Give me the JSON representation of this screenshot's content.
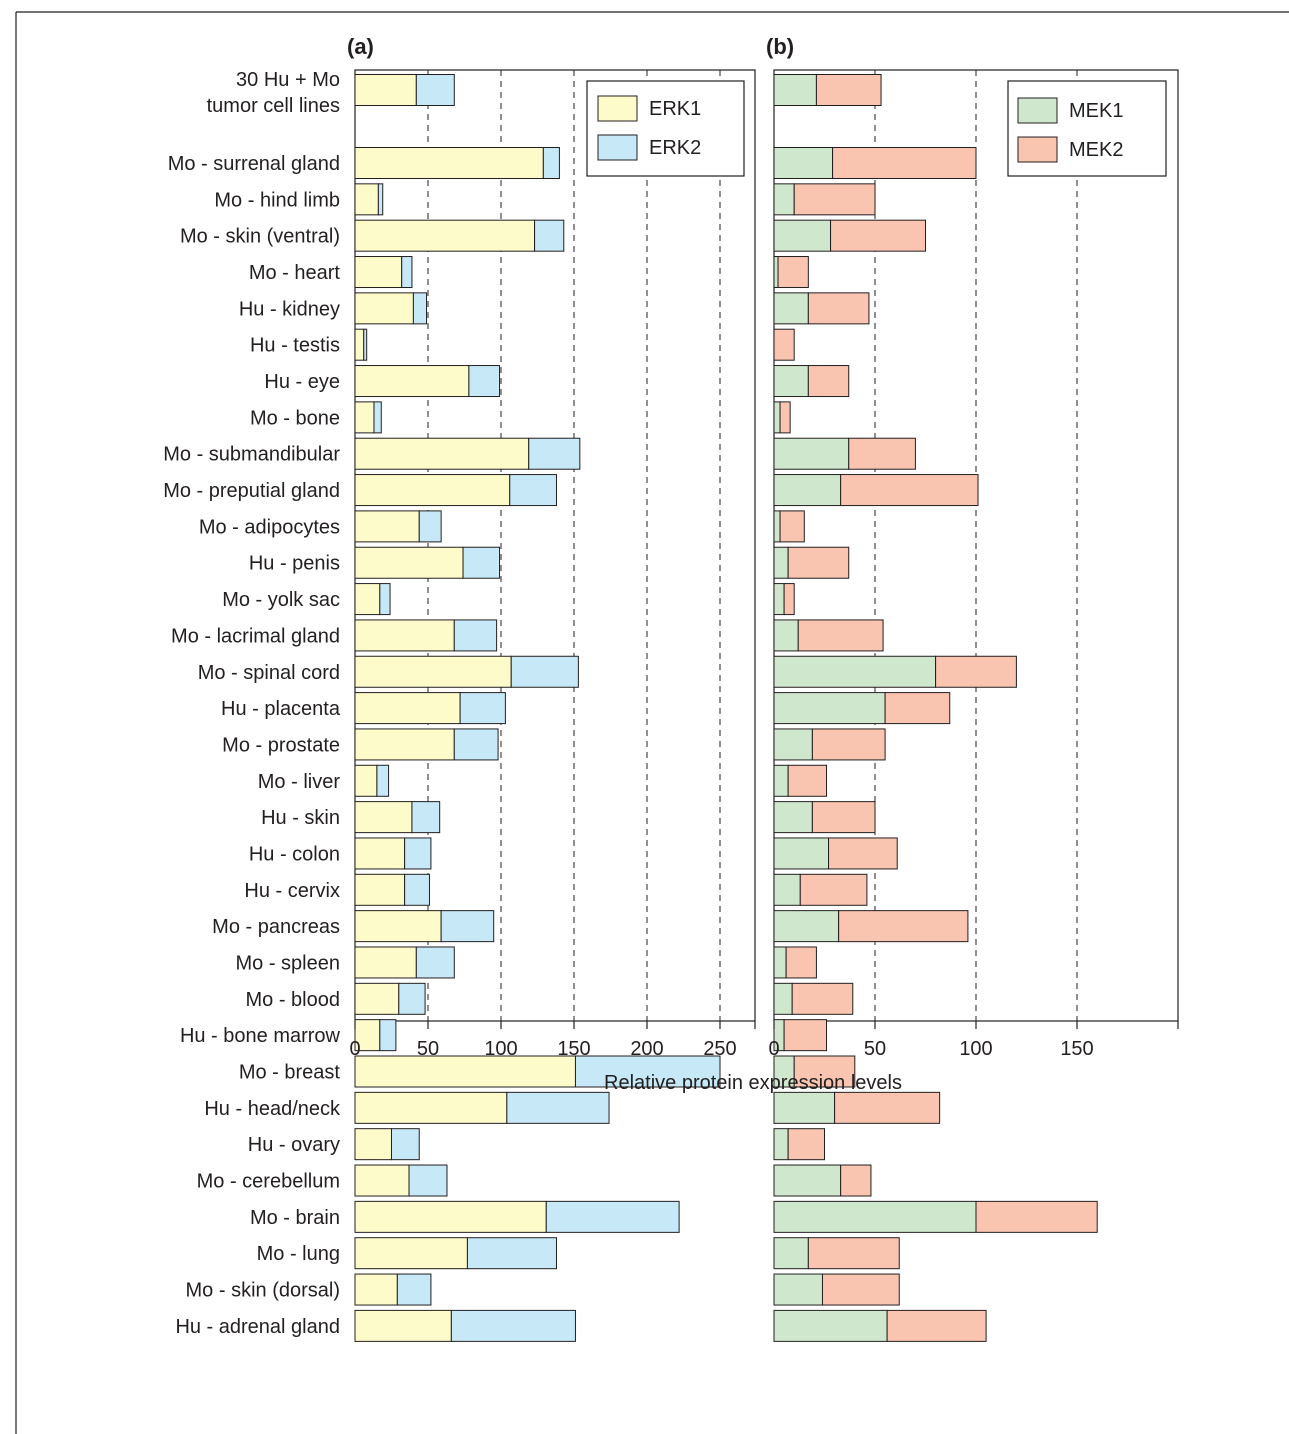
{
  "xlabel": "Relative protein expression levels",
  "chart_data": [
    {
      "type": "bar",
      "stacked": true,
      "orientation": "horizontal",
      "panel_label": "(a)",
      "categories": [
        "30 Hu + Mo tumor cell lines",
        "Mo - surrenal gland",
        "Mo - hind limb",
        "Mo - skin (ventral)",
        "Mo - heart",
        "Hu - kidney",
        "Hu - testis",
        "Hu - eye",
        "Mo - bone",
        "Mo - submandibular",
        "Mo - preputial gland",
        "Mo - adipocytes",
        "Hu - penis",
        "Mo - yolk sac",
        "Mo - lacrimal gland",
        "Mo - spinal cord",
        "Hu - placenta",
        "Mo - prostate",
        "Mo - liver",
        "Hu - skin",
        "Hu - colon",
        "Hu - cervix",
        "Mo - pancreas",
        "Mo - spleen",
        "Mo - blood",
        "Hu - bone marrow",
        "Mo - breast",
        "Hu - head/neck",
        "Hu - ovary",
        "Mo - cerebellum",
        "Mo - brain",
        "Mo - lung",
        "Mo - skin (dorsal)",
        "Hu - adrenal gland"
      ],
      "series": [
        {
          "name": "ERK1",
          "color": "#fdfbc9",
          "values": [
            42,
            129,
            16,
            123,
            32,
            40,
            6,
            78,
            13,
            119,
            106,
            44,
            74,
            17,
            68,
            107,
            72,
            68,
            15,
            39,
            34,
            34,
            59,
            42,
            30,
            17,
            151,
            104,
            25,
            37,
            131,
            77,
            29,
            66
          ]
        },
        {
          "name": "ERK2",
          "color": "#c7e8f6",
          "values": [
            26,
            11,
            3,
            20,
            7,
            9,
            2,
            21,
            5,
            35,
            32,
            15,
            25,
            7,
            29,
            46,
            31,
            30,
            8,
            19,
            18,
            17,
            36,
            26,
            18,
            11,
            99,
            70,
            19,
            26,
            91,
            61,
            23,
            85
          ]
        }
      ],
      "xlim": [
        0,
        270
      ],
      "xticks": [
        0,
        50,
        100,
        150,
        200,
        250
      ],
      "grid_lines": [
        50,
        100,
        150,
        200,
        250
      ],
      "legend_position": "top-right"
    },
    {
      "type": "bar",
      "stacked": true,
      "orientation": "horizontal",
      "panel_label": "(b)",
      "categories": [
        "30 Hu + Mo tumor cell lines",
        "Mo - surrenal gland",
        "Mo - hind limb",
        "Mo - skin (ventral)",
        "Mo - heart",
        "Hu - kidney",
        "Hu - testis",
        "Hu - eye",
        "Mo - bone",
        "Mo - submandibular",
        "Mo - preputial gland",
        "Mo - adipocytes",
        "Hu - penis",
        "Mo - yolk sac",
        "Mo - lacrimal gland",
        "Mo - spinal cord",
        "Hu - placenta",
        "Mo - prostate",
        "Mo - liver",
        "Hu - skin",
        "Hu - colon",
        "Hu - cervix",
        "Mo - pancreas",
        "Mo - spleen",
        "Mo - blood",
        "Hu - bone marrow",
        "Mo - breast",
        "Hu - head/neck",
        "Hu - ovary",
        "Mo - cerebellum",
        "Mo - brain",
        "Mo - lung",
        "Mo - skin (dorsal)",
        "Hu - adrenal gland"
      ],
      "series": [
        {
          "name": "MEK1",
          "color": "#cfe8cd",
          "values": [
            21,
            29,
            10,
            28,
            2,
            17,
            0,
            17,
            3,
            37,
            33,
            3,
            7,
            5,
            12,
            80,
            55,
            19,
            7,
            19,
            27,
            13,
            32,
            6,
            9,
            5,
            10,
            30,
            7,
            33,
            100,
            17,
            24,
            56
          ]
        },
        {
          "name": "MEK2",
          "color": "#f9c4b0",
          "values": [
            32,
            71,
            40,
            47,
            15,
            30,
            10,
            20,
            5,
            33,
            68,
            12,
            30,
            5,
            42,
            40,
            32,
            36,
            19,
            31,
            34,
            33,
            64,
            15,
            30,
            21,
            30,
            52,
            18,
            15,
            60,
            45,
            38,
            49
          ]
        }
      ],
      "xlim": [
        0,
        200
      ],
      "xticks": [
        0,
        50,
        100,
        150
      ],
      "grid_lines": [
        50,
        100,
        150
      ],
      "legend_position": "top-right"
    }
  ]
}
